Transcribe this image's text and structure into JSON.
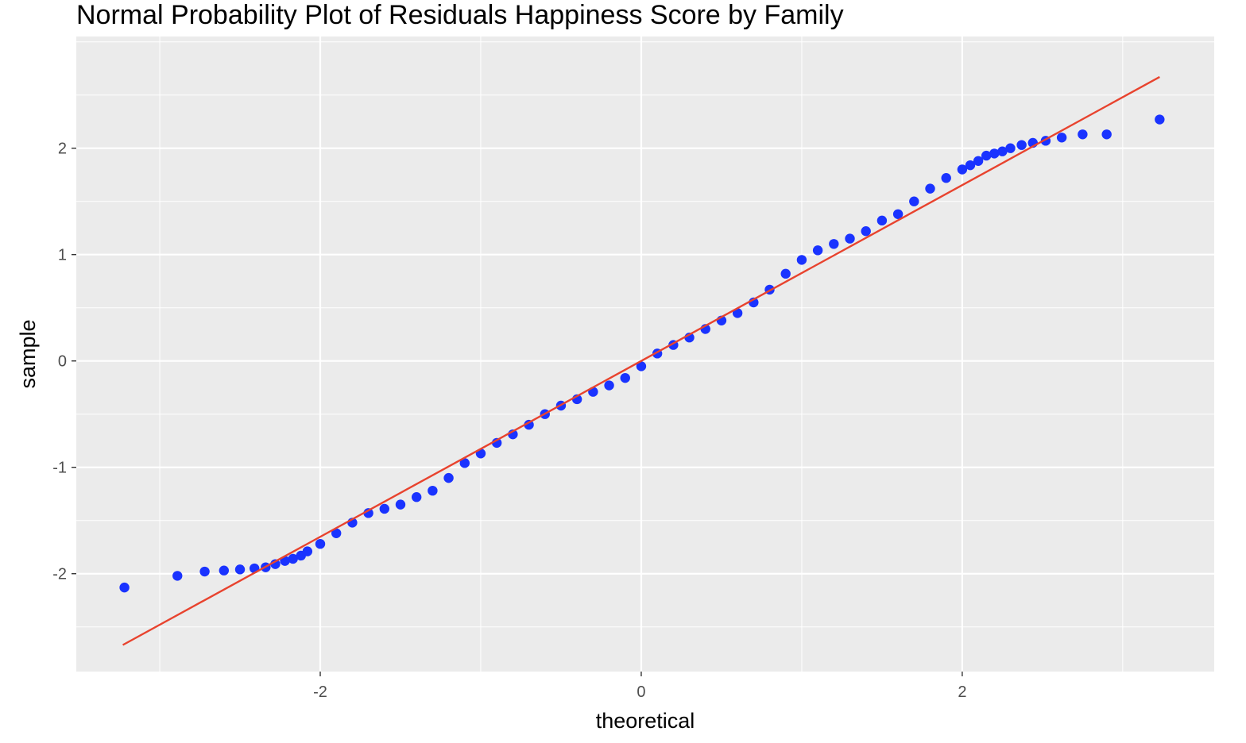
{
  "chart_data": {
    "type": "scatter",
    "title": "Normal Probability Plot of Residuals Happiness Score by Family",
    "xlabel": "theoretical",
    "ylabel": "sample",
    "xlim": [
      -3.52,
      3.57
    ],
    "ylim": [
      -2.92,
      3.05
    ],
    "x_ticks": [
      -2,
      0,
      2
    ],
    "x_tick_labels": [
      "-2",
      "0",
      "2"
    ],
    "y_ticks": [
      -2,
      -1,
      0,
      1,
      2
    ],
    "y_tick_labels": [
      "-2",
      "-1",
      "0",
      "1",
      "2"
    ],
    "grid": true,
    "panel_background": "#ebebeb",
    "grid_color": "#ffffff",
    "point_color": "#1a33ff",
    "line_color": "#e8432e",
    "series": [
      {
        "type": "points",
        "x": [
          -3.22,
          -2.89,
          -2.72,
          -2.6,
          -2.5,
          -2.41,
          -2.34,
          -2.28,
          -2.22,
          -2.17,
          -2.12,
          -2.08,
          -2.0,
          -1.9,
          -1.8,
          -1.7,
          -1.6,
          -1.5,
          -1.4,
          -1.3,
          -1.2,
          -1.1,
          -1.0,
          -0.9,
          -0.8,
          -0.7,
          -0.6,
          -0.5,
          -0.4,
          -0.3,
          -0.2,
          -0.1,
          0.0,
          0.1,
          0.2,
          0.3,
          0.4,
          0.5,
          0.6,
          0.7,
          0.8,
          0.9,
          1.0,
          1.1,
          1.2,
          1.3,
          1.4,
          1.5,
          1.6,
          1.7,
          1.8,
          1.9,
          2.0,
          2.05,
          2.1,
          2.15,
          2.2,
          2.25,
          2.3,
          2.37,
          2.44,
          2.52,
          2.62,
          2.75,
          2.9,
          3.23
        ],
        "y": [
          -2.13,
          -2.02,
          -1.98,
          -1.97,
          -1.96,
          -1.95,
          -1.94,
          -1.91,
          -1.88,
          -1.86,
          -1.83,
          -1.79,
          -1.72,
          -1.62,
          -1.52,
          -1.43,
          -1.39,
          -1.35,
          -1.28,
          -1.22,
          -1.1,
          -0.96,
          -0.87,
          -0.77,
          -0.69,
          -0.6,
          -0.5,
          -0.42,
          -0.36,
          -0.29,
          -0.23,
          -0.16,
          -0.05,
          0.07,
          0.15,
          0.22,
          0.3,
          0.38,
          0.45,
          0.55,
          0.67,
          0.82,
          0.95,
          1.04,
          1.1,
          1.15,
          1.22,
          1.32,
          1.38,
          1.5,
          1.62,
          1.72,
          1.8,
          1.84,
          1.88,
          1.93,
          1.95,
          1.97,
          2.0,
          2.03,
          2.05,
          2.07,
          2.1,
          2.13,
          2.13,
          2.27
        ]
      },
      {
        "type": "reference_line",
        "x": [
          -3.23,
          3.23
        ],
        "y": [
          -2.67,
          2.67
        ]
      }
    ]
  }
}
